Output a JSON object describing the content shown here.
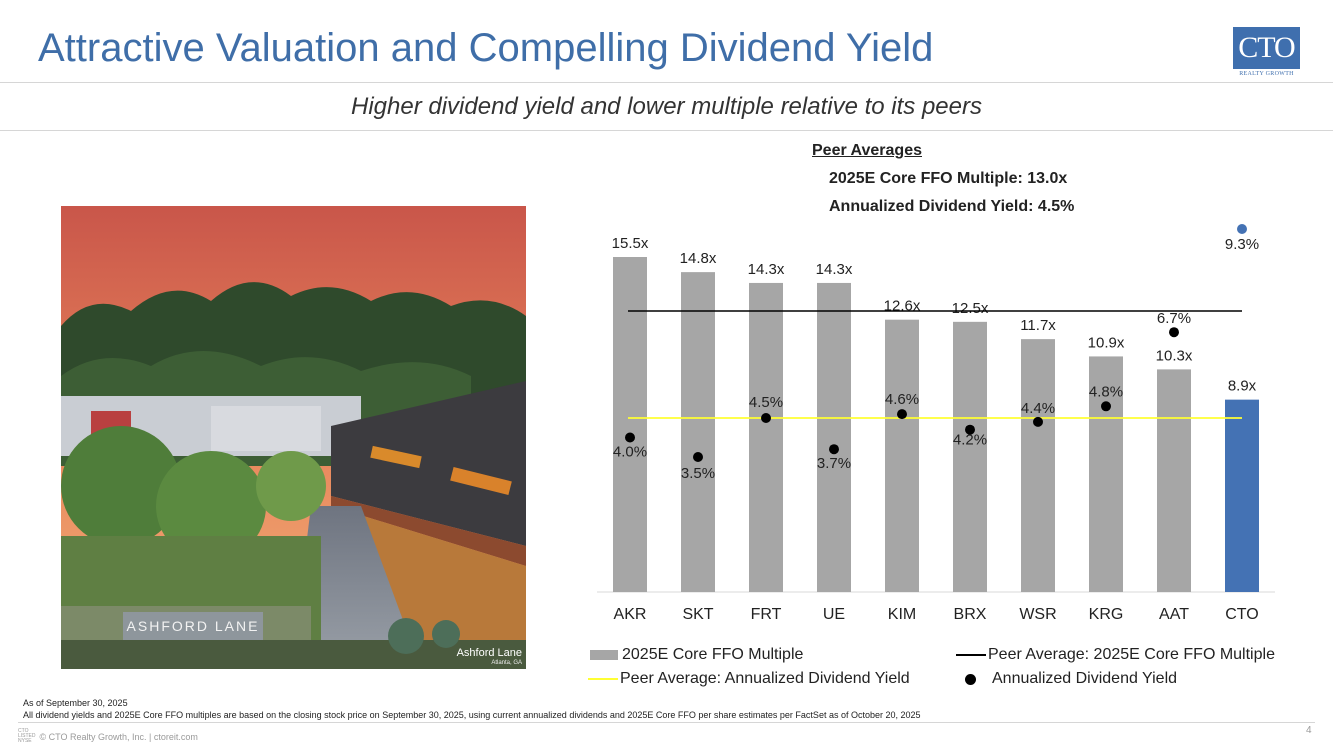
{
  "title": "Attractive Valuation and Compelling Dividend Yield",
  "subtitle": "Higher dividend yield and lower multiple relative to its peers",
  "logo": {
    "text": "CTO",
    "subtext": "REALTY GROWTH"
  },
  "photo": {
    "caption": "Ashford Lane",
    "caption_sub": "Atlanta, GA",
    "sign_text": "ASHFORD LANE"
  },
  "peer_averages": {
    "heading": "Peer Averages",
    "multiple_line": "2025E Core FFO Multiple: 13.0x",
    "yield_line": "Annualized Dividend Yield: 4.5%"
  },
  "chart_data": {
    "type": "bar",
    "categories": [
      "AKR",
      "SKT",
      "FRT",
      "UE",
      "KIM",
      "BRX",
      "WSR",
      "KRG",
      "AAT",
      "CTO"
    ],
    "series": [
      {
        "name": "2025E Core FFO Multiple",
        "kind": "bar",
        "values": [
          15.5,
          14.8,
          14.3,
          14.3,
          12.6,
          12.5,
          11.7,
          10.9,
          10.3,
          8.9
        ],
        "labels": [
          "15.5x",
          "14.8x",
          "14.3x",
          "14.3x",
          "12.6x",
          "12.5x",
          "11.7x",
          "10.9x",
          "10.3x",
          "8.9x"
        ]
      },
      {
        "name": "Annualized Dividend Yield",
        "kind": "scatter",
        "values": [
          4.0,
          3.5,
          4.5,
          3.7,
          4.6,
          4.2,
          4.4,
          4.8,
          6.7,
          9.3
        ],
        "labels": [
          "4.0%",
          "3.5%",
          "4.5%",
          "3.7%",
          "4.6%",
          "4.2%",
          "4.4%",
          "4.8%",
          "6.7%",
          "9.3%"
        ]
      }
    ],
    "reference_lines": [
      {
        "name": "Peer Average: 2025E Core FFO Multiple",
        "value": 13.0,
        "axis": "multiple"
      },
      {
        "name": "Peer Average: Annualized Dividend Yield",
        "value": 4.5,
        "axis": "yield"
      }
    ],
    "legend": [
      "2025E Core FFO Multiple",
      "Peer Average: 2025E Core FFO Multiple",
      "Peer Average: Annualized Dividend Yield",
      "Annualized Dividend Yield"
    ],
    "legend_position": "bottom",
    "multiple_ylim": [
      0,
      18.6
    ],
    "colors": {
      "bar": "#a6a6a6",
      "highlight_bar": "#4472b4",
      "dot": "#000000",
      "highlight_dot": "#4472b4",
      "multiple_avg_line": "#000000",
      "yield_avg_line": "#ffff33"
    },
    "highlight_category": "CTO"
  },
  "footnotes": {
    "date": "As of September 30, 2025",
    "methodology": "All dividend yields and 2025E Core FFO multiples are based on the closing stock price on September 30, 2025, using current annualized dividends and 2025E Core FFO per share estimates per FactSet as of October 20, 2025"
  },
  "footer": {
    "mini_logo": [
      "CTO",
      "LISTED",
      "NYSE"
    ],
    "copyright": "© CTO Realty Growth, Inc. | ctoreit.com",
    "page_number": "4"
  }
}
